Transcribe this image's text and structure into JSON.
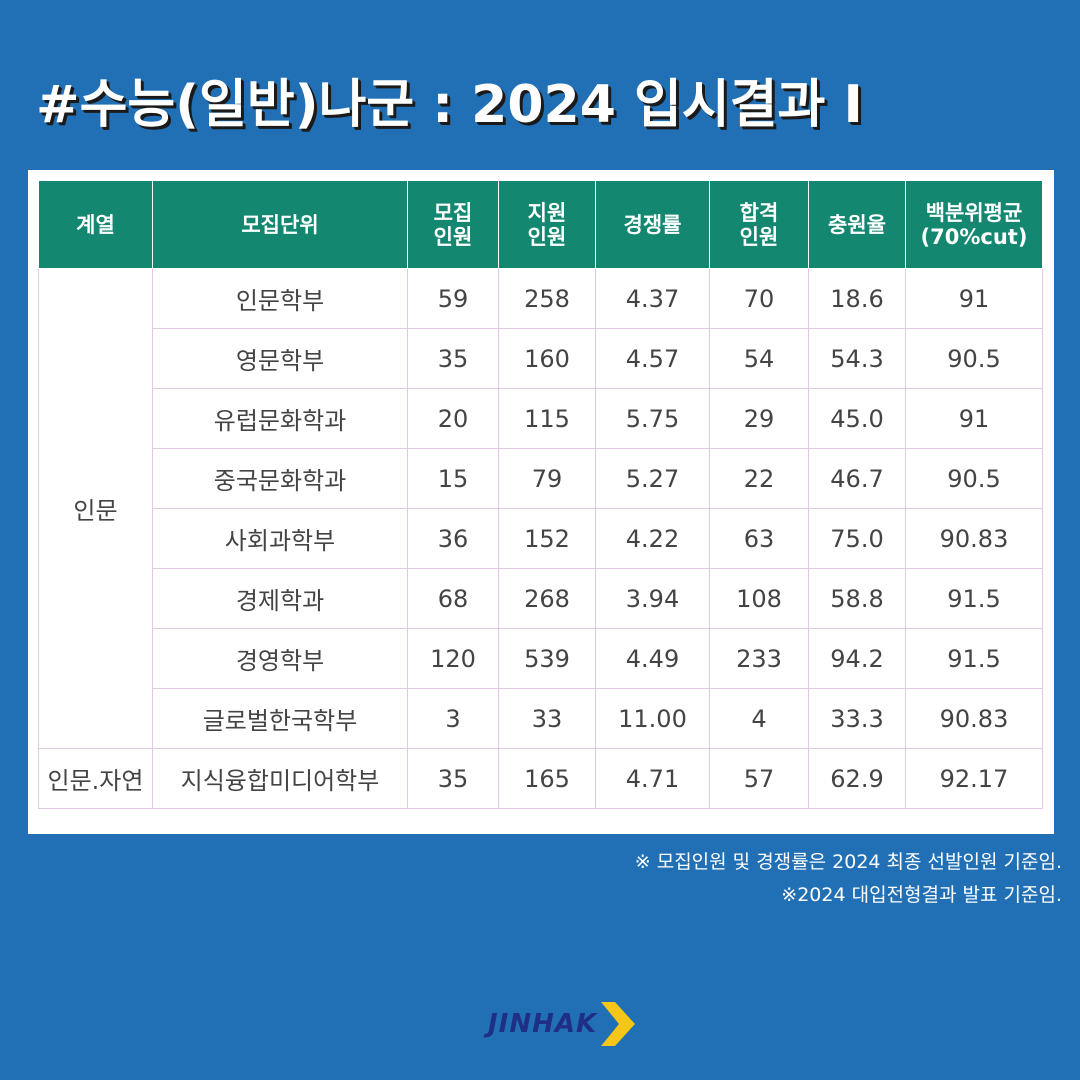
{
  "title": "#수능(일반)나군 : 2024 입시결과 I",
  "table": {
    "headers": {
      "group": "계열",
      "unit": "모집단위",
      "recruit_1": "모집",
      "recruit_2": "인원",
      "apply_1": "지원",
      "apply_2": "인원",
      "competition": "경쟁률",
      "pass_1": "합격",
      "pass_2": "인원",
      "fill_rate": "충원율",
      "percentile_1": "백분위평균",
      "percentile_2": "(70%cut)"
    },
    "groups": [
      {
        "name": "인문",
        "rows": [
          {
            "unit": "인문학부",
            "recruit": "59",
            "apply": "258",
            "competition": "4.37",
            "pass": "70",
            "fill": "18.6",
            "percentile": "91"
          },
          {
            "unit": "영문학부",
            "recruit": "35",
            "apply": "160",
            "competition": "4.57",
            "pass": "54",
            "fill": "54.3",
            "percentile": "90.5"
          },
          {
            "unit": "유럽문화학과",
            "recruit": "20",
            "apply": "115",
            "competition": "5.75",
            "pass": "29",
            "fill": "45.0",
            "percentile": "91"
          },
          {
            "unit": "중국문화학과",
            "recruit": "15",
            "apply": "79",
            "competition": "5.27",
            "pass": "22",
            "fill": "46.7",
            "percentile": "90.5"
          },
          {
            "unit": "사회과학부",
            "recruit": "36",
            "apply": "152",
            "competition": "4.22",
            "pass": "63",
            "fill": "75.0",
            "percentile": "90.83"
          },
          {
            "unit": "경제학과",
            "recruit": "68",
            "apply": "268",
            "competition": "3.94",
            "pass": "108",
            "fill": "58.8",
            "percentile": "91.5"
          },
          {
            "unit": "경영학부",
            "recruit": "120",
            "apply": "539",
            "competition": "4.49",
            "pass": "233",
            "fill": "94.2",
            "percentile": "91.5"
          },
          {
            "unit": "글로벌한국학부",
            "recruit": "3",
            "apply": "33",
            "competition": "11.00",
            "pass": "4",
            "fill": "33.3",
            "percentile": "90.83"
          }
        ]
      },
      {
        "name": "인문.자연",
        "rows": [
          {
            "unit": "지식융합미디어학부",
            "recruit": "35",
            "apply": "165",
            "competition": "4.71",
            "pass": "57",
            "fill": "62.9",
            "percentile": "92.17"
          }
        ]
      }
    ]
  },
  "footnotes": [
    "※ 모집인원 및 경쟁률은 2024 최종 선발인원 기준임.",
    "※2024 대입전형결과 발표 기준임."
  ],
  "logo": {
    "text": "JINHAK",
    "text_color": "#1f2f86",
    "chevron_color": "#f5c518"
  },
  "colors": {
    "background": "#2170b5",
    "header": "#13876f",
    "cell_border": "#e3c8e6"
  }
}
